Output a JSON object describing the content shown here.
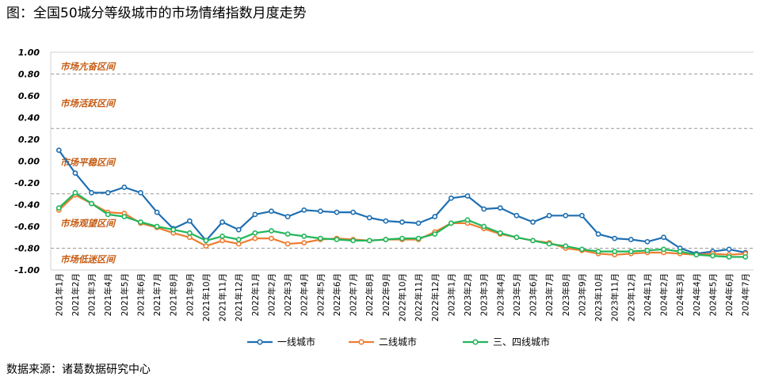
{
  "title": "图：全国50城分等级城市的市场情绪指数月度走势",
  "source": "数据来源：诸葛数据研究中心",
  "chart_data": {
    "type": "line",
    "ylim": [
      -1.0,
      1.0
    ],
    "yticks": [
      1.0,
      0.8,
      0.6,
      0.4,
      0.2,
      0.0,
      -0.2,
      -0.4,
      -0.6,
      -0.8,
      -1.0
    ],
    "ytick_labels": [
      "1.00",
      "0.80",
      "0.60",
      "0.40",
      "0.20",
      "0.00",
      "-0.20",
      "-0.40",
      "-0.60",
      "-0.80",
      "-1.00"
    ],
    "dashed_gridlines": [
      0.8,
      0.3,
      -0.3,
      -0.8
    ],
    "zones": [
      {
        "label": "市场亢奋区间",
        "y": 0.87
      },
      {
        "label": "市场活跃区间",
        "y": 0.53
      },
      {
        "label": "市场平稳区间",
        "y": -0.01
      },
      {
        "label": "市场观望区间",
        "y": -0.57
      },
      {
        "label": "市场低迷区间",
        "y": -0.9
      }
    ],
    "categories": [
      "2021年1月",
      "2021年2月",
      "2021年3月",
      "2021年4月",
      "2021年5月",
      "2021年6月",
      "2021年7月",
      "2021年8月",
      "2021年9月",
      "2021年10月",
      "2021年11月",
      "2021年12月",
      "2022年1月",
      "2022年2月",
      "2022年3月",
      "2022年4月",
      "2022年5月",
      "2022年6月",
      "2022年7月",
      "2022年8月",
      "2022年9月",
      "2022年10月",
      "2022年11月",
      "2022年12月",
      "2023年1月",
      "2023年2月",
      "2023年3月",
      "2023年4月",
      "2023年5月",
      "2023年6月",
      "2023年7月",
      "2023年8月",
      "2023年9月",
      "2023年10月",
      "2023年11月",
      "2023年12月",
      "2024年1月",
      "2024年2月",
      "2024年3月",
      "2024年4月",
      "2024年5月",
      "2024年6月",
      "2024年7月"
    ],
    "series": [
      {
        "name": "一线城市",
        "color": "#1f6fb2",
        "values": [
          0.1,
          -0.11,
          -0.29,
          -0.29,
          -0.24,
          -0.29,
          -0.47,
          -0.62,
          -0.55,
          -0.73,
          -0.56,
          -0.63,
          -0.49,
          -0.46,
          -0.51,
          -0.45,
          -0.46,
          -0.47,
          -0.47,
          -0.52,
          -0.55,
          -0.56,
          -0.57,
          -0.51,
          -0.34,
          -0.32,
          -0.44,
          -0.43,
          -0.5,
          -0.56,
          -0.5,
          -0.5,
          -0.5,
          -0.67,
          -0.71,
          -0.72,
          -0.74,
          -0.7,
          -0.8,
          -0.85,
          -0.83,
          -0.81,
          -0.84
        ]
      },
      {
        "name": "二线城市",
        "color": "#ed7d31",
        "values": [
          -0.45,
          -0.31,
          -0.39,
          -0.47,
          -0.48,
          -0.57,
          -0.61,
          -0.66,
          -0.7,
          -0.78,
          -0.73,
          -0.76,
          -0.71,
          -0.71,
          -0.76,
          -0.75,
          -0.72,
          -0.71,
          -0.72,
          -0.73,
          -0.72,
          -0.72,
          -0.72,
          -0.65,
          -0.57,
          -0.57,
          -0.62,
          -0.67,
          -0.7,
          -0.73,
          -0.75,
          -0.8,
          -0.82,
          -0.85,
          -0.86,
          -0.85,
          -0.84,
          -0.84,
          -0.85,
          -0.86,
          -0.85,
          -0.86,
          -0.85
        ]
      },
      {
        "name": "三、四线城市",
        "color": "#21b65a",
        "values": [
          -0.43,
          -0.29,
          -0.39,
          -0.49,
          -0.51,
          -0.56,
          -0.6,
          -0.63,
          -0.66,
          -0.73,
          -0.69,
          -0.72,
          -0.66,
          -0.64,
          -0.67,
          -0.69,
          -0.71,
          -0.72,
          -0.73,
          -0.73,
          -0.72,
          -0.71,
          -0.71,
          -0.67,
          -0.57,
          -0.54,
          -0.6,
          -0.66,
          -0.7,
          -0.73,
          -0.76,
          -0.78,
          -0.81,
          -0.83,
          -0.83,
          -0.83,
          -0.82,
          -0.81,
          -0.83,
          -0.86,
          -0.87,
          -0.88,
          -0.88
        ]
      }
    ],
    "legend_position": "bottom"
  }
}
